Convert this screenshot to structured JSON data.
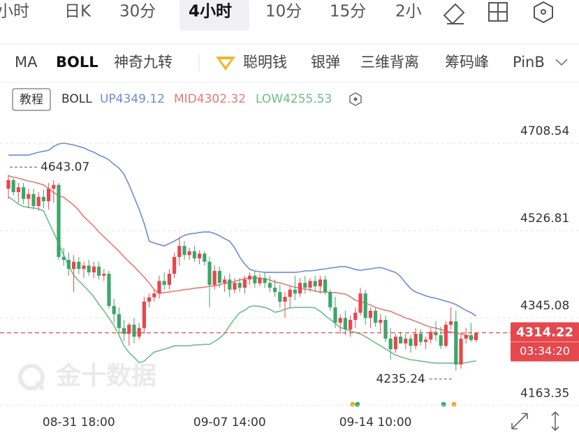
{
  "toolbar": {
    "periods": [
      "小时",
      "日K",
      "30分",
      "4小时",
      "10分",
      "15分",
      "2小"
    ],
    "indicators": [
      "MA",
      "BOLL",
      "神奇九转",
      "聪明钱",
      "银弹",
      "三维背离",
      "筹码峰",
      "PinB"
    ]
  },
  "chart_data": {
    "type": "candlestick",
    "tutorial": "教程",
    "indicator": "BOLL",
    "watermark": "金十数据",
    "countdown": "03:34:20",
    "categories": [
      null,
      null,
      null,
      null,
      null,
      null,
      null,
      null,
      null,
      null,
      null,
      null,
      null,
      null,
      "08-31 18:00",
      null,
      null,
      null,
      null,
      null,
      null,
      null,
      null,
      null,
      null,
      null,
      null,
      null,
      null,
      null,
      null,
      null,
      null,
      null,
      null,
      null,
      null,
      null,
      null,
      null,
      null,
      null,
      null,
      null,
      "09-07 14:00",
      null,
      null,
      null,
      null,
      null,
      null,
      null,
      null,
      null,
      null,
      null,
      null,
      null,
      null,
      null,
      null,
      null,
      null,
      null,
      null,
      null,
      null,
      null,
      null,
      null,
      null,
      null,
      null,
      "09-14 10:00",
      null,
      null,
      null,
      null,
      null,
      null,
      null,
      null,
      null,
      null,
      null,
      null,
      null,
      null,
      null,
      null,
      null,
      null,
      null,
      null
    ],
    "open": [
      4614,
      4632,
      4607,
      4617,
      4593,
      4603,
      4578,
      4597,
      4588,
      4614,
      4622,
      4472,
      4466,
      4447,
      4462,
      4447,
      4454,
      4440,
      4452,
      4433,
      4437,
      4370,
      4353,
      4324,
      4312,
      4331,
      4306,
      4324,
      4379,
      4388,
      4396,
      4422,
      4414,
      4437,
      4472,
      4495,
      4476,
      4484,
      4469,
      4479,
      4462,
      4414,
      4443,
      4418,
      4425,
      4404,
      4418,
      4408,
      4425,
      4433,
      4417,
      4428,
      4418,
      4408,
      4399,
      4379,
      4389,
      4404,
      4396,
      4418,
      4408,
      4422,
      4411,
      4425,
      4399,
      4367,
      4335,
      4345,
      4321,
      4341,
      4356,
      4396,
      4345,
      4360,
      4335,
      4341,
      4302,
      4280,
      4306,
      4292,
      4302,
      4287,
      4312,
      4295,
      4300,
      4316,
      4309,
      4287,
      4331,
      4338,
      4248,
      4302,
      4309,
      4299
    ],
    "high": [
      4643.07,
      4636,
      4626,
      4626,
      4614,
      4614,
      4607,
      4612,
      4626,
      4632,
      4626,
      4491,
      4481,
      4476,
      4472,
      4462,
      4466,
      4462,
      4462,
      4447,
      4443,
      4385,
      4367,
      4341,
      4335,
      4345,
      4335,
      4389,
      4396,
      4404,
      4433,
      4440,
      4447,
      4481,
      4513,
      4505,
      4491,
      4495,
      4486,
      4484,
      4472,
      4454,
      4452,
      4433,
      4437,
      4428,
      4428,
      4433,
      4440,
      4443,
      4437,
      4440,
      4433,
      4425,
      4414,
      4399,
      4411,
      4433,
      4428,
      4433,
      4428,
      4433,
      4433,
      4433,
      4404,
      4389,
      4353,
      4360,
      4350,
      4367,
      4408,
      4404,
      4367,
      4367,
      4353,
      4350,
      4324,
      4312,
      4316,
      4312,
      4309,
      4324,
      4321,
      4306,
      4324,
      4338,
      4327,
      4338,
      4367,
      4360,
      4312,
      4324,
      4335,
      4316
    ],
    "low": [
      4593,
      4600,
      4585,
      4582,
      4574,
      4571,
      4568,
      4574,
      4571,
      4585,
      4466,
      4454,
      4433,
      4399,
      4437,
      4428,
      4433,
      4428,
      4425,
      4422,
      4364,
      4335,
      4312,
      4297,
      4287,
      4292,
      4300,
      4312,
      4367,
      4379,
      4385,
      4404,
      4404,
      4428,
      4454,
      4466,
      4466,
      4462,
      4457,
      4454,
      4367,
      4404,
      4408,
      4399,
      4389,
      4396,
      4399,
      4396,
      4414,
      4408,
      4411,
      4408,
      4399,
      4389,
      4367,
      4345,
      4367,
      4382,
      4389,
      4396,
      4399,
      4399,
      4396,
      4393,
      4360,
      4324,
      4312,
      4309,
      4306,
      4324,
      4350,
      4331,
      4324,
      4327,
      4316,
      4295,
      4258,
      4273,
      4292,
      4280,
      4273,
      4280,
      4287,
      4280,
      4292,
      4297,
      4280,
      4283,
      4321,
      4235.24,
      4239,
      4292,
      4295,
      4295
    ],
    "close": [
      4632,
      4607,
      4617,
      4593,
      4603,
      4578,
      4597,
      4588,
      4614,
      4622,
      4472,
      4466,
      4447,
      4462,
      4447,
      4454,
      4440,
      4452,
      4433,
      4437,
      4370,
      4353,
      4324,
      4312,
      4331,
      4306,
      4324,
      4379,
      4388,
      4396,
      4422,
      4414,
      4437,
      4472,
      4495,
      4476,
      4484,
      4469,
      4479,
      4462,
      4414,
      4443,
      4418,
      4425,
      4404,
      4418,
      4408,
      4425,
      4433,
      4417,
      4428,
      4418,
      4408,
      4399,
      4379,
      4389,
      4404,
      4396,
      4418,
      4408,
      4422,
      4411,
      4425,
      4399,
      4367,
      4335,
      4345,
      4321,
      4341,
      4356,
      4396,
      4345,
      4360,
      4335,
      4341,
      4302,
      4280,
      4306,
      4292,
      4302,
      4287,
      4312,
      4295,
      4300,
      4316,
      4309,
      4287,
      4331,
      4338,
      4248,
      4302,
      4309,
      4299,
      4314.22
    ],
    "up_color": "#e5484d",
    "down_color": "#3ca66a",
    "lines": [
      {
        "name": "UP",
        "color": "#6f8ad8",
        "values": [
          4684,
          4684,
          4684,
          4684,
          4684,
          4687,
          4690,
          4692,
          4694,
          4702,
          4707,
          4709,
          4707,
          4705,
          4702,
          4699,
          4694,
          4690,
          4684,
          4680,
          4674,
          4665,
          4657,
          4644,
          4622,
          4597,
          4571,
          4542,
          4505,
          4501,
          4498,
          4495,
          4500,
          4505,
          4511,
          4517,
          4520,
          4521,
          4523,
          4524,
          4524,
          4521,
          4516,
          4510,
          4505,
          4491,
          4472,
          4457,
          4446,
          4443,
          4441,
          4440,
          4440,
          4440,
          4440,
          4440,
          4440,
          4440,
          4441,
          4443,
          4443,
          4444,
          4446,
          4447,
          4449,
          4450,
          4452,
          4452,
          4449,
          4446,
          4444,
          4446,
          4447,
          4449,
          4450,
          4447,
          4443,
          4440,
          4431,
          4418,
          4406,
          4399,
          4395,
          4391,
          4388,
          4386,
          4383,
          4380,
          4377,
          4373,
          4367,
          4361,
          4356,
          4349.12
        ]
      },
      {
        "name": "MID",
        "color": "#e27b76",
        "values": [
          4641,
          4638,
          4636,
          4633,
          4630,
          4628,
          4625,
          4622,
          4614,
          4606,
          4600,
          4596,
          4588,
          4580,
          4569,
          4556,
          4546,
          4536,
          4524,
          4514,
          4504,
          4494,
          4484,
          4472,
          4462,
          4452,
          4441,
          4430,
          4418,
          4404,
          4396,
          4398,
          4399,
          4401,
          4402,
          4404,
          4405,
          4407,
          4408,
          4409,
          4411,
          4412,
          4414,
          4417,
          4418,
          4421,
          4424,
          4427,
          4428,
          4428,
          4428,
          4427,
          4424,
          4420,
          4418,
          4415,
          4412,
          4409,
          4407,
          4405,
          4404,
          4401,
          4399,
          4399,
          4398,
          4398,
          4396,
          4395,
          4389,
          4382,
          4379,
          4376,
          4372,
          4367,
          4364,
          4361,
          4359,
          4354,
          4350,
          4345,
          4342,
          4338,
          4334,
          4329,
          4326,
          4324,
          4321,
          4318,
          4316,
          4313,
          4312,
          4309,
          4306,
          4302.32
        ]
      },
      {
        "name": "LOW",
        "color": "#6dbd8a",
        "values": [
          4597,
          4590,
          4582,
          4577,
          4575,
          4574,
          4572,
          4568,
          4545,
          4523,
          4500,
          4476,
          4453,
          4434,
          4422,
          4412,
          4401,
          4389,
          4373,
          4360,
          4345,
          4329,
          4309,
          4287,
          4273,
          4263,
          4252,
          4255,
          4265,
          4274,
          4277,
          4280,
          4283,
          4287,
          4287,
          4287,
          4287,
          4289,
          4289,
          4290,
          4290,
          4296,
          4303,
          4313,
          4329,
          4344,
          4356,
          4361,
          4369,
          4370,
          4369,
          4367,
          4363,
          4357,
          4359,
          4363,
          4366,
          4367,
          4367,
          4367,
          4367,
          4366,
          4359,
          4350,
          4342,
          4334,
          4325,
          4322,
          4318,
          4315,
          4312,
          4306,
          4300,
          4293,
          4287,
          4281,
          4274,
          4268,
          4264,
          4261,
          4258,
          4257,
          4255,
          4254,
          4252,
          4251,
          4251,
          4251,
          4251,
          4251,
          4251,
          4252,
          4254,
          4255.53
        ]
      }
    ],
    "ylim": [
      4155,
      4767
    ],
    "yticks": [
      4708.54,
      4526.81,
      4345.08,
      4163.35
    ],
    "grid": true
  }
}
